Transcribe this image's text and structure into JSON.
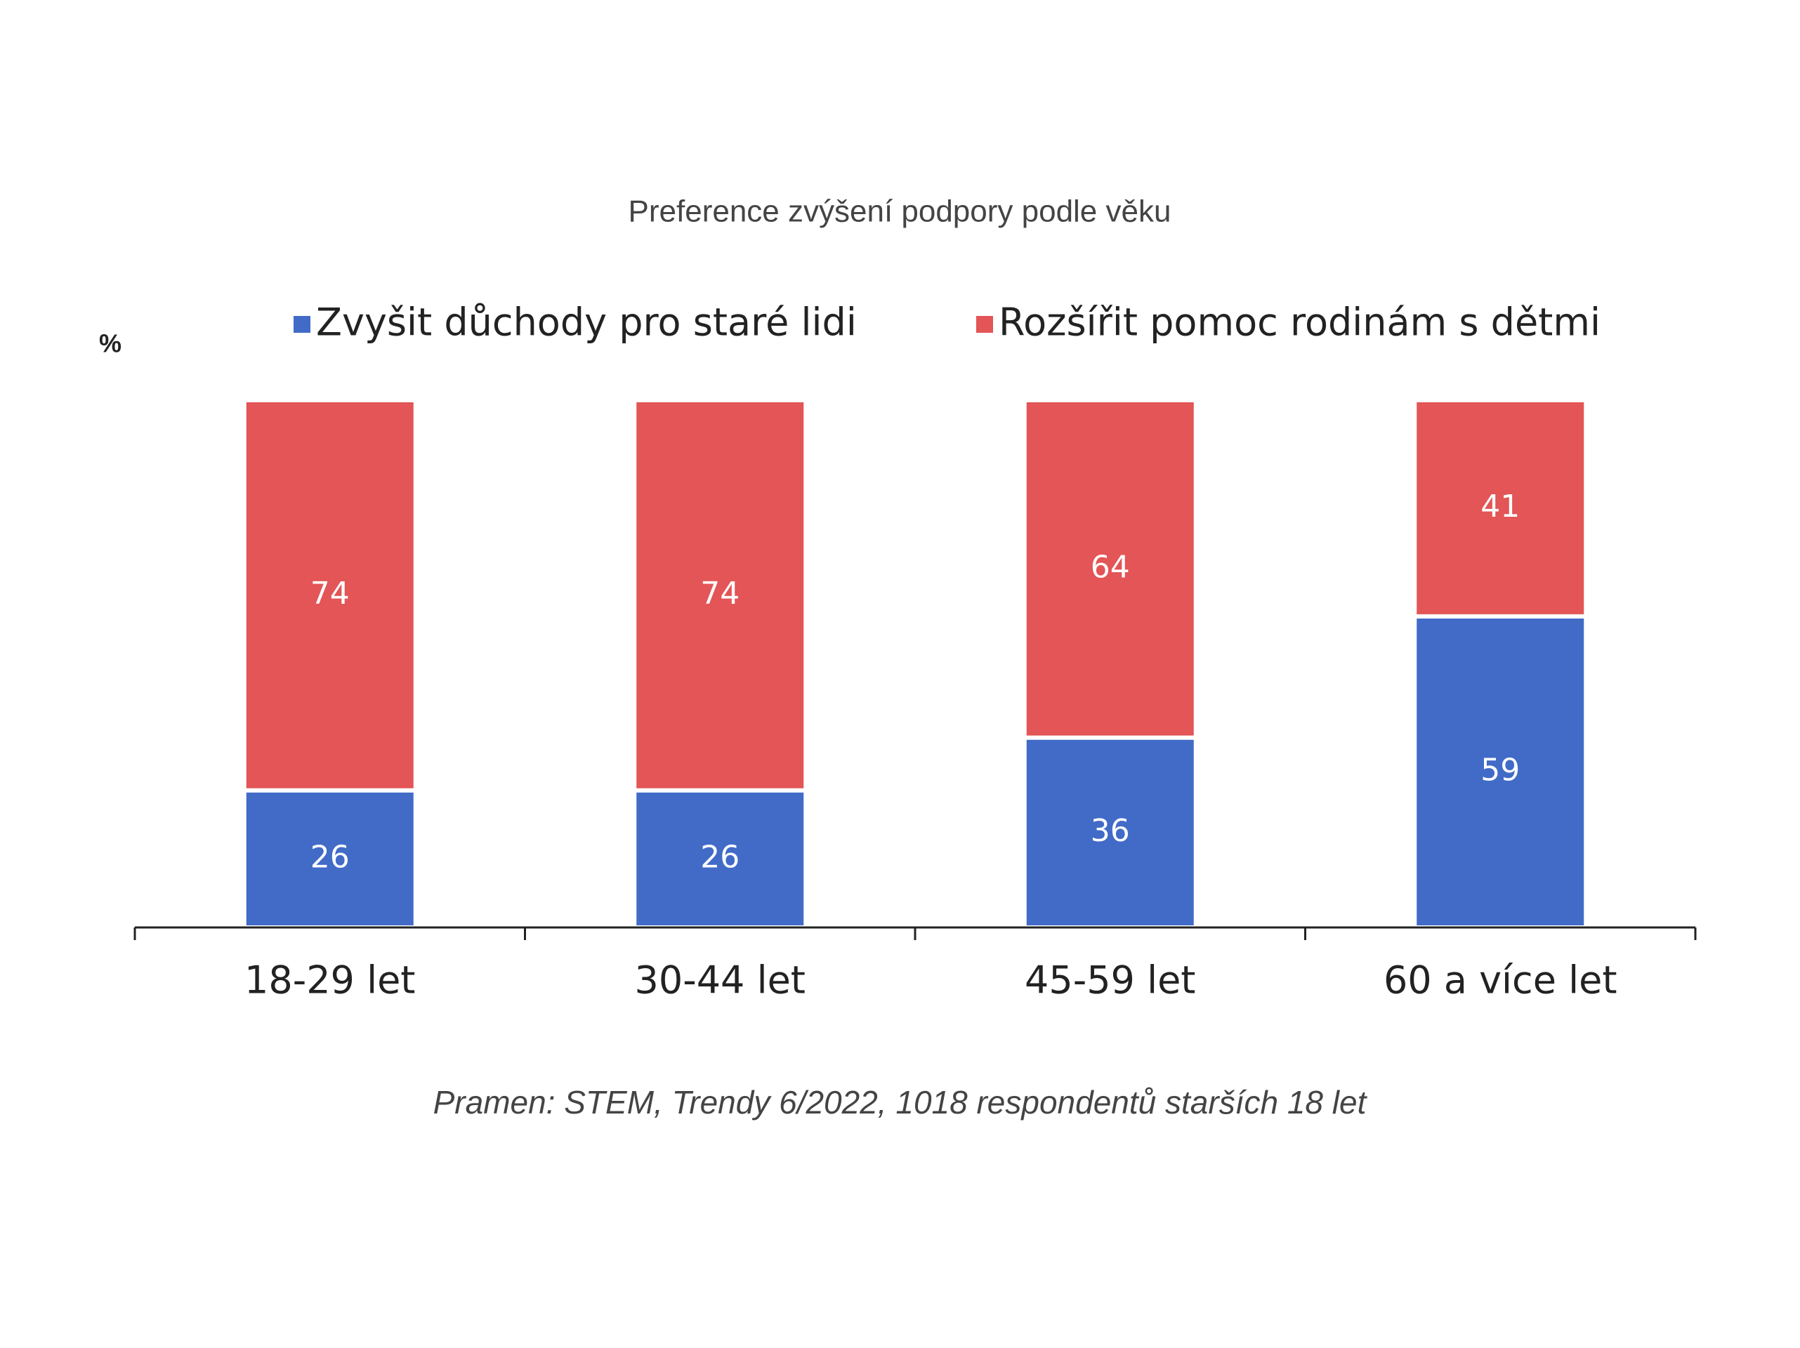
{
  "chart_data": {
    "type": "stacked_bar",
    "title": "Preference zvýšení podpory podle věku",
    "y_label": "%",
    "categories": [
      "18-29 let",
      "30-44 let",
      "45-59 let",
      "60 a více let"
    ],
    "series": [
      {
        "name": "Zvyšit důchody pro staré lidi",
        "color": "#416bc7",
        "values": [
          26,
          26,
          36,
          59
        ]
      },
      {
        "name": "Rozšířit pomoc rodinám s dětmi",
        "color": "#e35556",
        "values": [
          74,
          74,
          64,
          41
        ]
      }
    ],
    "ylim": [
      0,
      100
    ],
    "source": "Pramen: STEM, Trendy 6/2022, 1018 respondentů starších 18 let"
  }
}
